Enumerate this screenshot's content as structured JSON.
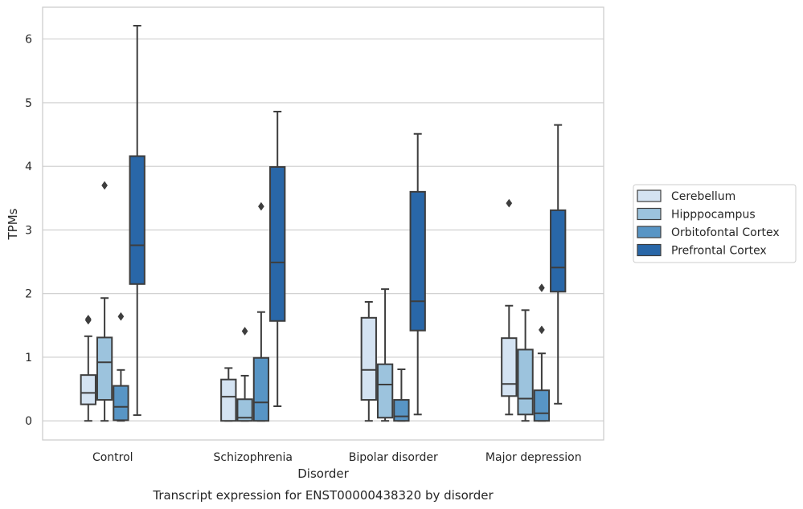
{
  "chart_data": {
    "type": "box",
    "xlabel": "Disorder",
    "ylabel": "TPMs",
    "caption": "Transcript expression for ENST00000438320 by disorder",
    "ylim": [
      -0.3,
      6.5
    ],
    "yticks": [
      "0",
      "1",
      "2",
      "3",
      "4",
      "5",
      "6"
    ],
    "grid": "horizontal",
    "legend_position": "right",
    "categories": [
      "Control",
      "Schizophrenia",
      "Bipolar disorder",
      "Major depression"
    ],
    "series": [
      {
        "name": "Cerebellum",
        "color": "#d4e3f2",
        "boxes": [
          {
            "whisker_low": 0.0,
            "q1": 0.26,
            "median": 0.44,
            "q3": 0.72,
            "whisker_high": 1.33,
            "outliers": [
              1.58,
              1.6
            ]
          },
          {
            "whisker_low": 0.0,
            "q1": 0.0,
            "median": 0.38,
            "q3": 0.65,
            "whisker_high": 0.83,
            "outliers": []
          },
          {
            "whisker_low": 0.0,
            "q1": 0.33,
            "median": 0.8,
            "q3": 1.62,
            "whisker_high": 1.87,
            "outliers": []
          },
          {
            "whisker_low": 0.1,
            "q1": 0.39,
            "median": 0.58,
            "q3": 1.3,
            "whisker_high": 1.81,
            "outliers": [
              3.42
            ]
          }
        ]
      },
      {
        "name": "Hipppocampus",
        "color": "#9cc3dd",
        "boxes": [
          {
            "whisker_low": 0.0,
            "q1": 0.33,
            "median": 0.92,
            "q3": 1.31,
            "whisker_high": 1.93,
            "outliers": [
              3.7
            ]
          },
          {
            "whisker_low": 0.0,
            "q1": 0.0,
            "median": 0.05,
            "q3": 0.34,
            "whisker_high": 0.71,
            "outliers": [
              1.41
            ]
          },
          {
            "whisker_low": 0.0,
            "q1": 0.05,
            "median": 0.57,
            "q3": 0.89,
            "whisker_high": 2.07,
            "outliers": []
          },
          {
            "whisker_low": 0.0,
            "q1": 0.1,
            "median": 0.35,
            "q3": 1.12,
            "whisker_high": 1.74,
            "outliers": []
          }
        ]
      },
      {
        "name": "Orbitofontal Cortex",
        "color": "#5895c5",
        "boxes": [
          {
            "whisker_low": 0.0,
            "q1": 0.01,
            "median": 0.22,
            "q3": 0.55,
            "whisker_high": 0.8,
            "outliers": [
              1.64
            ]
          },
          {
            "whisker_low": 0.0,
            "q1": 0.0,
            "median": 0.29,
            "q3": 0.99,
            "whisker_high": 1.71,
            "outliers": [
              3.37
            ]
          },
          {
            "whisker_low": 0.0,
            "q1": 0.0,
            "median": 0.07,
            "q3": 0.33,
            "whisker_high": 0.81,
            "outliers": []
          },
          {
            "whisker_low": 0.0,
            "q1": 0.0,
            "median": 0.12,
            "q3": 0.48,
            "whisker_high": 1.06,
            "outliers": [
              1.43,
              2.09
            ]
          }
        ]
      },
      {
        "name": "Prefrontal Cortex",
        "color": "#2967a8",
        "boxes": [
          {
            "whisker_low": 0.09,
            "q1": 2.15,
            "median": 2.76,
            "q3": 4.16,
            "whisker_high": 6.21,
            "outliers": []
          },
          {
            "whisker_low": 0.23,
            "q1": 1.57,
            "median": 2.49,
            "q3": 3.99,
            "whisker_high": 4.86,
            "outliers": []
          },
          {
            "whisker_low": 0.1,
            "q1": 1.42,
            "median": 1.88,
            "q3": 3.6,
            "whisker_high": 4.51,
            "outliers": []
          },
          {
            "whisker_low": 0.27,
            "q1": 2.03,
            "median": 2.41,
            "q3": 3.31,
            "whisker_high": 4.65,
            "outliers": []
          }
        ]
      }
    ]
  }
}
